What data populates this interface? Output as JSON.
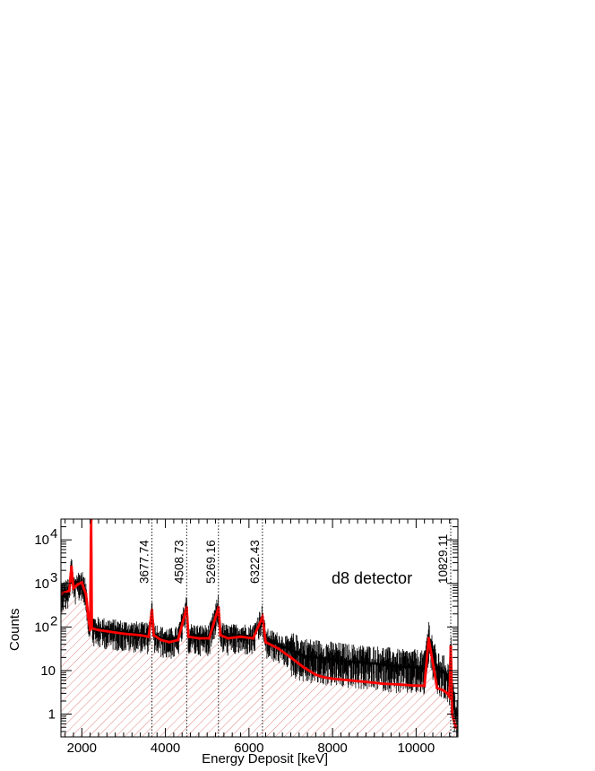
{
  "chart_data": {
    "type": "line",
    "title": "",
    "xlabel": "Energy Deposit [keV]",
    "ylabel": "Counts",
    "xlim": [
      1500,
      11000
    ],
    "ylim": [
      0.3,
      30000
    ],
    "yscale": "log",
    "x_ticks": [
      2000,
      4000,
      6000,
      8000,
      10000
    ],
    "y_ticks": [
      {
        "value": 1,
        "label": "1"
      },
      {
        "value": 10,
        "label": "10"
      },
      {
        "value": 100,
        "label": "10",
        "exp": "2"
      },
      {
        "value": 1000,
        "label": "10",
        "exp": "3"
      },
      {
        "value": 10000,
        "label": "10",
        "exp": "4"
      }
    ],
    "annotation": "d8 detector",
    "peak_lines": [
      {
        "energy": 3677.74,
        "label": "3677.74"
      },
      {
        "energy": 4508.73,
        "label": "4508.73"
      },
      {
        "energy": 5269.16,
        "label": "5269.16"
      },
      {
        "energy": 6322.43,
        "label": "6322.43"
      },
      {
        "energy": 10829.11,
        "label": "10829.11"
      }
    ],
    "series": [
      {
        "role": "data",
        "color": "#000000",
        "x": [
          1500,
          1700,
          1750,
          1800,
          1900,
          2000,
          2100,
          2150,
          2200,
          2223,
          2240,
          2300,
          2400,
          2600,
          3000,
          3400,
          3600,
          3678,
          3720,
          3900,
          4100,
          4300,
          4509,
          4550,
          4800,
          5050,
          5269,
          5320,
          5500,
          5800,
          6100,
          6322,
          6400,
          6700,
          7000,
          7300,
          7600,
          7800,
          8000,
          8400,
          8800,
          9200,
          9600,
          10000,
          10200,
          10300,
          10500,
          10650,
          10750,
          10800,
          10829,
          10860,
          10950
        ],
        "y": [
          600,
          700,
          2600,
          800,
          1000,
          1100,
          600,
          200,
          90,
          30000,
          100,
          95,
          90,
          85,
          75,
          70,
          65,
          260,
          70,
          55,
          50,
          55,
          300,
          65,
          60,
          60,
          300,
          70,
          60,
          65,
          60,
          180,
          50,
          40,
          30,
          22,
          20,
          19,
          18,
          16,
          15,
          14,
          12,
          12,
          11,
          60,
          10,
          9,
          7,
          5,
          40,
          3,
          1
        ]
      },
      {
        "role": "fit",
        "color": "#ff0000",
        "x": [
          1500,
          1700,
          1750,
          1800,
          1900,
          2000,
          2100,
          2150,
          2200,
          2223,
          2240,
          2300,
          2400,
          2600,
          3000,
          3400,
          3600,
          3678,
          3720,
          3900,
          4100,
          4300,
          4509,
          4550,
          4800,
          5050,
          5269,
          5320,
          5500,
          5800,
          6100,
          6322,
          6400,
          6700,
          7000,
          7300,
          7600,
          7800,
          8000,
          8400,
          8800,
          9200,
          9600,
          10000,
          10200,
          10300,
          10500,
          10650,
          10750,
          10800,
          10829,
          10860,
          10950
        ],
        "y": [
          580,
          680,
          2400,
          780,
          950,
          1050,
          560,
          180,
          85,
          28000,
          95,
          90,
          85,
          80,
          70,
          65,
          60,
          240,
          65,
          50,
          45,
          50,
          280,
          60,
          55,
          55,
          280,
          65,
          55,
          60,
          55,
          170,
          45,
          32,
          20,
          12,
          8,
          7,
          6.5,
          6,
          5.5,
          5,
          4.8,
          4.5,
          4.5,
          55,
          4,
          3.5,
          3,
          2.5,
          35,
          1,
          0.5
        ]
      }
    ]
  }
}
